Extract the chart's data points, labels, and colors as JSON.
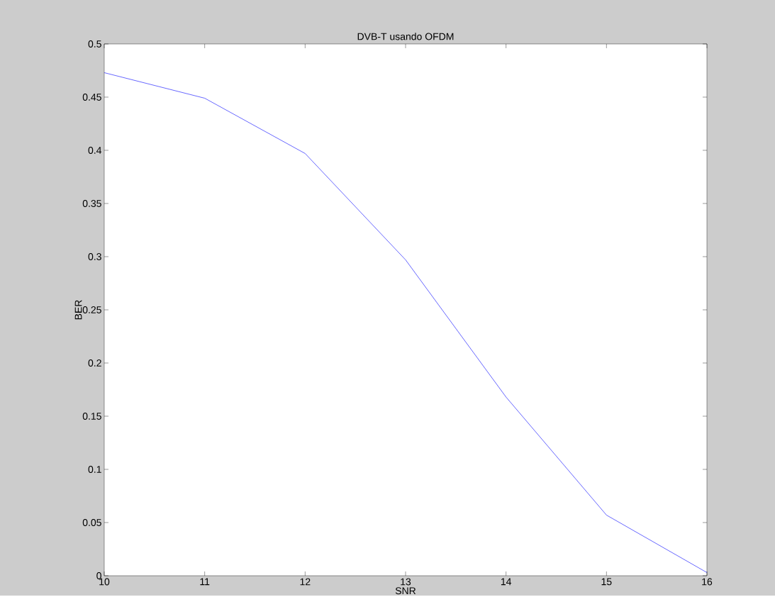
{
  "chart_data": {
    "type": "line",
    "title": "DVB-T usando OFDM",
    "xlabel": "SNR",
    "ylabel": "BER",
    "x": [
      10,
      11,
      12,
      13,
      14,
      15,
      16
    ],
    "series": [
      {
        "color": "#0000ff",
        "values": [
          0.473,
          0.449,
          0.397,
          0.297,
          0.168,
          0.057,
          0.003
        ]
      }
    ],
    "xlim": [
      10,
      16
    ],
    "ylim": [
      0,
      0.5
    ],
    "xticks": [
      10,
      11,
      12,
      13,
      14,
      15,
      16
    ],
    "yticks": [
      0,
      0.05,
      0.1,
      0.15,
      0.2,
      0.25,
      0.3,
      0.35,
      0.4,
      0.45,
      0.5
    ],
    "grid": false,
    "marker": "none",
    "line_style": "solid"
  }
}
